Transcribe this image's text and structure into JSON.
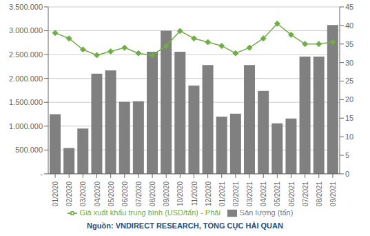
{
  "chart_data": {
    "type": "bar",
    "categories": [
      "01/2020",
      "02/2020",
      "03/2020",
      "04/2020",
      "05/2020",
      "06/2020",
      "07/2020",
      "08/2020",
      "09/2020",
      "10/2020",
      "11/2020",
      "12/2020",
      "01/2021",
      "02/2021",
      "03/2021",
      "04/2021",
      "05/2021",
      "06/2021",
      "07/2021",
      "08/2021",
      "09/2021"
    ],
    "series": [
      {
        "name": "Sản lượng (tấn)",
        "type": "bar",
        "color": "#808080",
        "values": [
          1250000,
          540000,
          950000,
          2100000,
          2170000,
          1510000,
          1520000,
          2560000,
          3000000,
          2560000,
          1850000,
          2280000,
          1200000,
          1260000,
          2280000,
          1740000,
          1060000,
          1160000,
          2460000,
          2460000,
          3120000
        ]
      },
      {
        "name": "Giá xuất khẩu trung bình (USD/tấn) - Phải",
        "type": "line",
        "axis": "y2",
        "color": "#70AD47",
        "marker": "diamond",
        "values": [
          38.0,
          36.5,
          33.5,
          32.0,
          33.0,
          34.0,
          32.5,
          32.0,
          34.5,
          38.5,
          36.5,
          35.5,
          34.5,
          32.5,
          34.0,
          36.5,
          40.5,
          37.5,
          35.0,
          35.0,
          35.5
        ]
      }
    ],
    "ylim": [
      0,
      3500000
    ],
    "yticks": [
      {
        "value": 0,
        "label": "-"
      },
      {
        "value": 500000,
        "label": "500.000"
      },
      {
        "value": 1000000,
        "label": "1.000.000"
      },
      {
        "value": 1500000,
        "label": "1.500.000"
      },
      {
        "value": 2000000,
        "label": "2.000.000"
      },
      {
        "value": 2500000,
        "label": "2.500.000"
      },
      {
        "value": 3000000,
        "label": "3.000.000"
      },
      {
        "value": 3500000,
        "label": "3.500.000"
      }
    ],
    "y2lim": [
      0,
      45
    ],
    "y2ticks": [
      0,
      5,
      10,
      15,
      20,
      25,
      30,
      35,
      40,
      45
    ],
    "grid": true,
    "legend": "bottom",
    "annotations": [
      "Nguồn: VNDIRECT RESEARCH, TỔNG CỤC HẢI QUAN"
    ]
  }
}
